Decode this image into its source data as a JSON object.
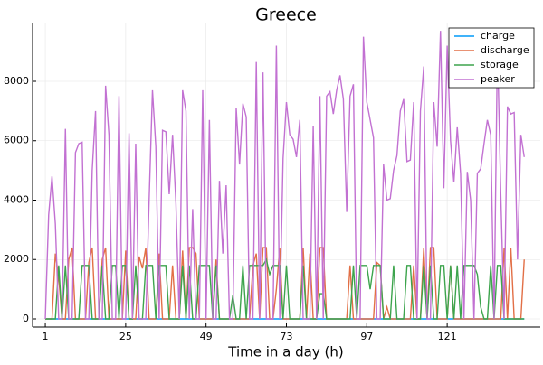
{
  "chart_data": {
    "type": "line",
    "title": "Greece",
    "x_label": "Time in a day (h)",
    "x": [
      1,
      2,
      3,
      4,
      5,
      6,
      7,
      8,
      9,
      10,
      11,
      12,
      13,
      14,
      15,
      16,
      17,
      18,
      19,
      20,
      21,
      22,
      23,
      24,
      25,
      26,
      27,
      28,
      29,
      30,
      31,
      32,
      33,
      34,
      35,
      36,
      37,
      38,
      39,
      40,
      41,
      42,
      43,
      44,
      45,
      46,
      47,
      48,
      49,
      50,
      51,
      52,
      53,
      54,
      55,
      56,
      57,
      58,
      59,
      60,
      61,
      62,
      63,
      64,
      65,
      66,
      67,
      68,
      69,
      70,
      71,
      72,
      73,
      74,
      75,
      76,
      77,
      78,
      79,
      80,
      81,
      82,
      83,
      84,
      85,
      86,
      87,
      88,
      89,
      90,
      91,
      92,
      93,
      94,
      95,
      96,
      97,
      98,
      99,
      100,
      101,
      102,
      103,
      104,
      105,
      106,
      107,
      108,
      109,
      110,
      111,
      112,
      113,
      114,
      115,
      116,
      117,
      118,
      119,
      120,
      121,
      122,
      123,
      124,
      125,
      126,
      127,
      128,
      129,
      130,
      131,
      132,
      133,
      134,
      135,
      136,
      137,
      138,
      139,
      140,
      141,
      142,
      143,
      144
    ],
    "series": [
      {
        "name": "charge",
        "color": "#009af9",
        "values": [
          0,
          0,
          0,
          0,
          0,
          0,
          0,
          0,
          0,
          0,
          0,
          0,
          0,
          0,
          0,
          0,
          0,
          0,
          0,
          0,
          0,
          0,
          0,
          0,
          0,
          0,
          0,
          0,
          0,
          0,
          0,
          0,
          0,
          0,
          0,
          0,
          0,
          0,
          0,
          0,
          0,
          0,
          0,
          0,
          0,
          0,
          0,
          0,
          0,
          0,
          0,
          0,
          0,
          0,
          0,
          0,
          0,
          0,
          0,
          0,
          0,
          0,
          0,
          0,
          0,
          0,
          0,
          0,
          0,
          0,
          0,
          0,
          0,
          0,
          0,
          0,
          0,
          0,
          0,
          0,
          0,
          0,
          0,
          0,
          0,
          0,
          0,
          0,
          0,
          0,
          0,
          0,
          0,
          0,
          0,
          0,
          0,
          0,
          0,
          0,
          0,
          0,
          0,
          0,
          0,
          0,
          0,
          0,
          0,
          0,
          0,
          0,
          0,
          0,
          0,
          0,
          0,
          0,
          0,
          0,
          0,
          0,
          0,
          0,
          0,
          0,
          0,
          0,
          0,
          0,
          0,
          0,
          0,
          0,
          0,
          0,
          0,
          0,
          0,
          0,
          0,
          0,
          0,
          0
        ]
      },
      {
        "name": "discharge",
        "color": "#e26f46",
        "values": [
          0,
          0,
          0,
          2200,
          1400,
          0,
          0,
          2000,
          2400,
          0,
          0,
          0,
          0,
          1900,
          2400,
          0,
          0,
          2000,
          2400,
          0,
          0,
          0,
          0,
          0,
          2300,
          0,
          0,
          0,
          2100,
          1700,
          2400,
          0,
          0,
          0,
          2200,
          0,
          0,
          0,
          1800,
          0,
          0,
          2300,
          0,
          2400,
          2400,
          2200,
          0,
          0,
          0,
          0,
          0,
          2000,
          0,
          0,
          0,
          0,
          0,
          0,
          0,
          0,
          0,
          0,
          1800,
          2200,
          0,
          2400,
          2400,
          0,
          0,
          1000,
          2400,
          0,
          0,
          0,
          0,
          0,
          0,
          2400,
          0,
          2200,
          0,
          0,
          2400,
          2400,
          0,
          0,
          0,
          0,
          0,
          0,
          0,
          1800,
          0,
          0,
          0,
          0,
          0,
          0,
          0,
          1900,
          1800,
          0,
          400,
          0,
          0,
          0,
          0,
          0,
          0,
          0,
          1800,
          0,
          0,
          2400,
          0,
          2400,
          2400,
          0,
          0,
          0,
          0,
          1800,
          0,
          0,
          0,
          0,
          0,
          0,
          0,
          0,
          0,
          0,
          0,
          0,
          0,
          0,
          0,
          2400,
          0,
          2400,
          0,
          0,
          0,
          2000
        ]
      },
      {
        "name": "storage",
        "color": "#3da44d",
        "values": [
          0,
          0,
          0,
          0,
          1800,
          0,
          1800,
          0,
          0,
          0,
          0,
          1800,
          1800,
          1800,
          0,
          0,
          0,
          1800,
          0,
          0,
          1800,
          1800,
          0,
          1800,
          1800,
          0,
          0,
          1800,
          0,
          0,
          1800,
          1800,
          1800,
          0,
          1800,
          1800,
          1800,
          0,
          0,
          0,
          0,
          1800,
          0,
          1800,
          0,
          0,
          1800,
          1800,
          1800,
          1800,
          0,
          1800,
          0,
          0,
          0,
          0,
          800,
          0,
          0,
          1800,
          0,
          1800,
          1800,
          1800,
          1800,
          1800,
          2000,
          1500,
          1800,
          1800,
          1800,
          0,
          1800,
          0,
          0,
          0,
          0,
          1800,
          0,
          0,
          0,
          0,
          850,
          850,
          0,
          0,
          0,
          0,
          0,
          0,
          0,
          0,
          1800,
          0,
          1800,
          1800,
          1800,
          1000,
          1800,
          1800,
          1800,
          0,
          0,
          0,
          1800,
          0,
          0,
          0,
          1800,
          1800,
          0,
          0,
          0,
          1800,
          0,
          1800,
          0,
          0,
          1800,
          1800,
          0,
          1800,
          0,
          1800,
          0,
          1800,
          1800,
          1800,
          1800,
          1500,
          400,
          0,
          0,
          1800,
          0,
          1800,
          1800,
          0,
          0,
          0,
          0,
          0,
          0,
          0
        ]
      },
      {
        "name": "peaker",
        "color": "#c271d2",
        "values": [
          0,
          3500,
          4800,
          3200,
          0,
          0,
          6400,
          0,
          0,
          5600,
          5900,
          5950,
          0,
          0,
          5000,
          7000,
          0,
          0,
          7850,
          6200,
          0,
          0,
          7500,
          0,
          0,
          6250,
          0,
          5900,
          0,
          0,
          0,
          4000,
          7700,
          5800,
          0,
          6350,
          6300,
          4200,
          6200,
          3900,
          0,
          7700,
          7000,
          0,
          3700,
          0,
          0,
          7700,
          0,
          6700,
          0,
          0,
          4650,
          2200,
          4500,
          0,
          0,
          7100,
          5200,
          7250,
          6800,
          0,
          0,
          8650,
          0,
          8300,
          0,
          0,
          0,
          9200,
          0,
          5400,
          7300,
          6200,
          6050,
          5450,
          6700,
          0,
          0,
          0,
          6500,
          0,
          7500,
          0,
          7500,
          7650,
          6900,
          7700,
          8200,
          7400,
          3600,
          7500,
          7900,
          0,
          0,
          9500,
          7300,
          6700,
          6100,
          0,
          0,
          5200,
          4000,
          4050,
          5000,
          5500,
          7000,
          7400,
          5300,
          5350,
          7300,
          0,
          7000,
          8500,
          0,
          0,
          7300,
          5800,
          9700,
          4400,
          9200,
          6000,
          4600,
          6450,
          4900,
          0,
          4950,
          4000,
          0,
          4900,
          5050,
          5900,
          6700,
          6200,
          0,
          9250,
          4200,
          0,
          7150,
          6900,
          6950,
          2000,
          6200,
          5450
        ]
      }
    ],
    "xlim": [
      -2.8,
      148.8
    ],
    "xticks": [
      1,
      25,
      49,
      73,
      97,
      121
    ],
    "ylim": [
      -274,
      9977
    ],
    "yticks": [
      0,
      2000,
      4000,
      6000,
      8000
    ],
    "grid": true,
    "legend": "top-right"
  }
}
